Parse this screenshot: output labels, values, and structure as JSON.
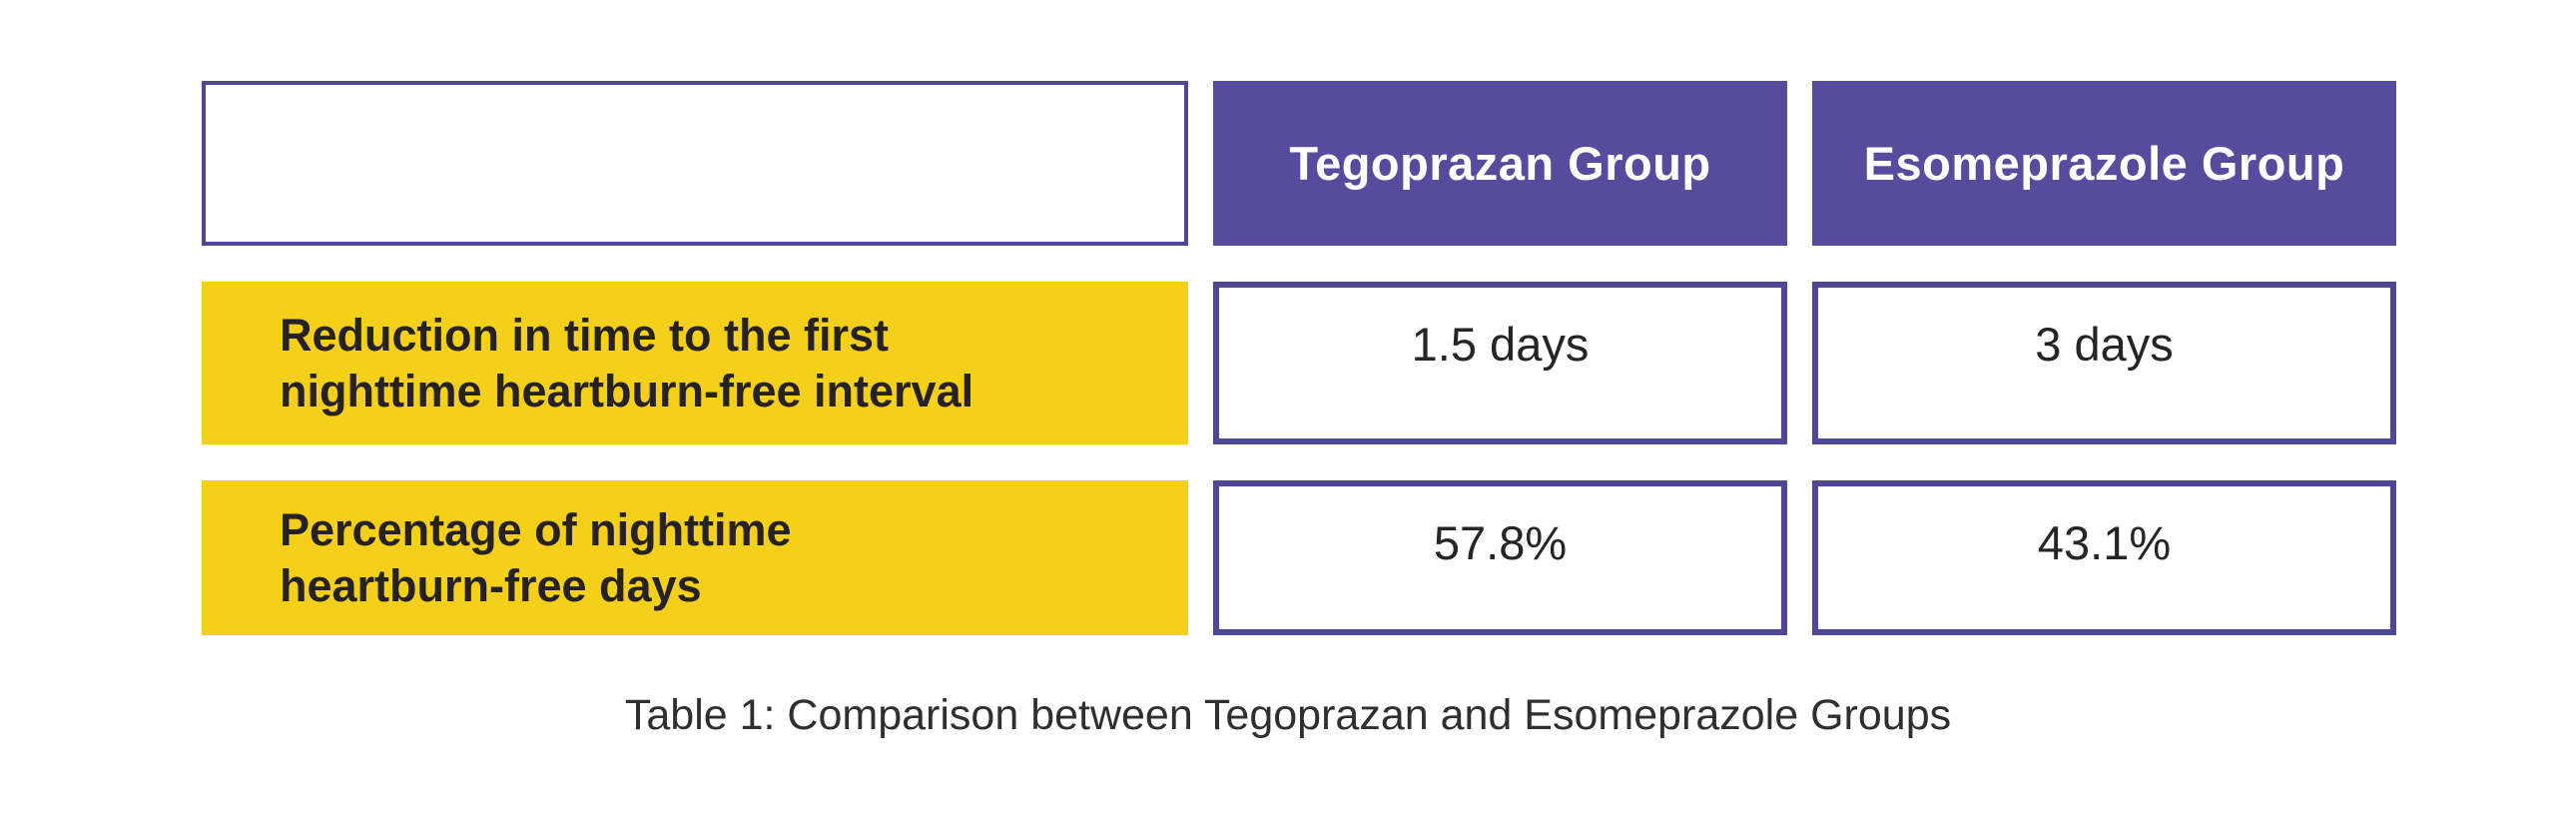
{
  "page": {
    "background": "#ffffff"
  },
  "colors": {
    "page_bg": "#ffffff",
    "purple": "#564B9D",
    "border_purple": "#4F4696",
    "yellow": "#F5D01A",
    "header_text": "#ffffff",
    "label_text": "#262223",
    "value_text": "#252525",
    "caption_text": "#2F2F2F"
  },
  "table": {
    "columns": [
      {
        "key": "metric",
        "header": ""
      },
      {
        "key": "tegoprazan",
        "header": "Tegoprazan Group"
      },
      {
        "key": "esomeprazole",
        "header": "Esomeprazole Group"
      }
    ],
    "rows": [
      {
        "label_line1": "Reduction in time to the first",
        "label_line2": "nighttime heartburn-free interval",
        "tegoprazan": "1.5 days",
        "esomeprazole": "3 days"
      },
      {
        "label_line1": "Percentage of nighttime",
        "label_line2": "heartburn-free days",
        "tegoprazan": "57.8%",
        "esomeprazole": "43.1%"
      }
    ]
  },
  "caption": "Table 1: Comparison between Tegoprazan and Esomeprazole Groups",
  "chart_data": {
    "type": "table",
    "title": "Table 1: Comparison between Tegoprazan and Esomeprazole Groups",
    "columns": [
      "",
      "Tegoprazan Group",
      "Esomeprazole Group"
    ],
    "rows": [
      [
        "Reduction in time to the first nighttime heartburn-free interval",
        "1.5 days",
        "3 days"
      ],
      [
        "Percentage of nighttime heartburn-free days",
        "57.8%",
        "43.1%"
      ]
    ]
  }
}
